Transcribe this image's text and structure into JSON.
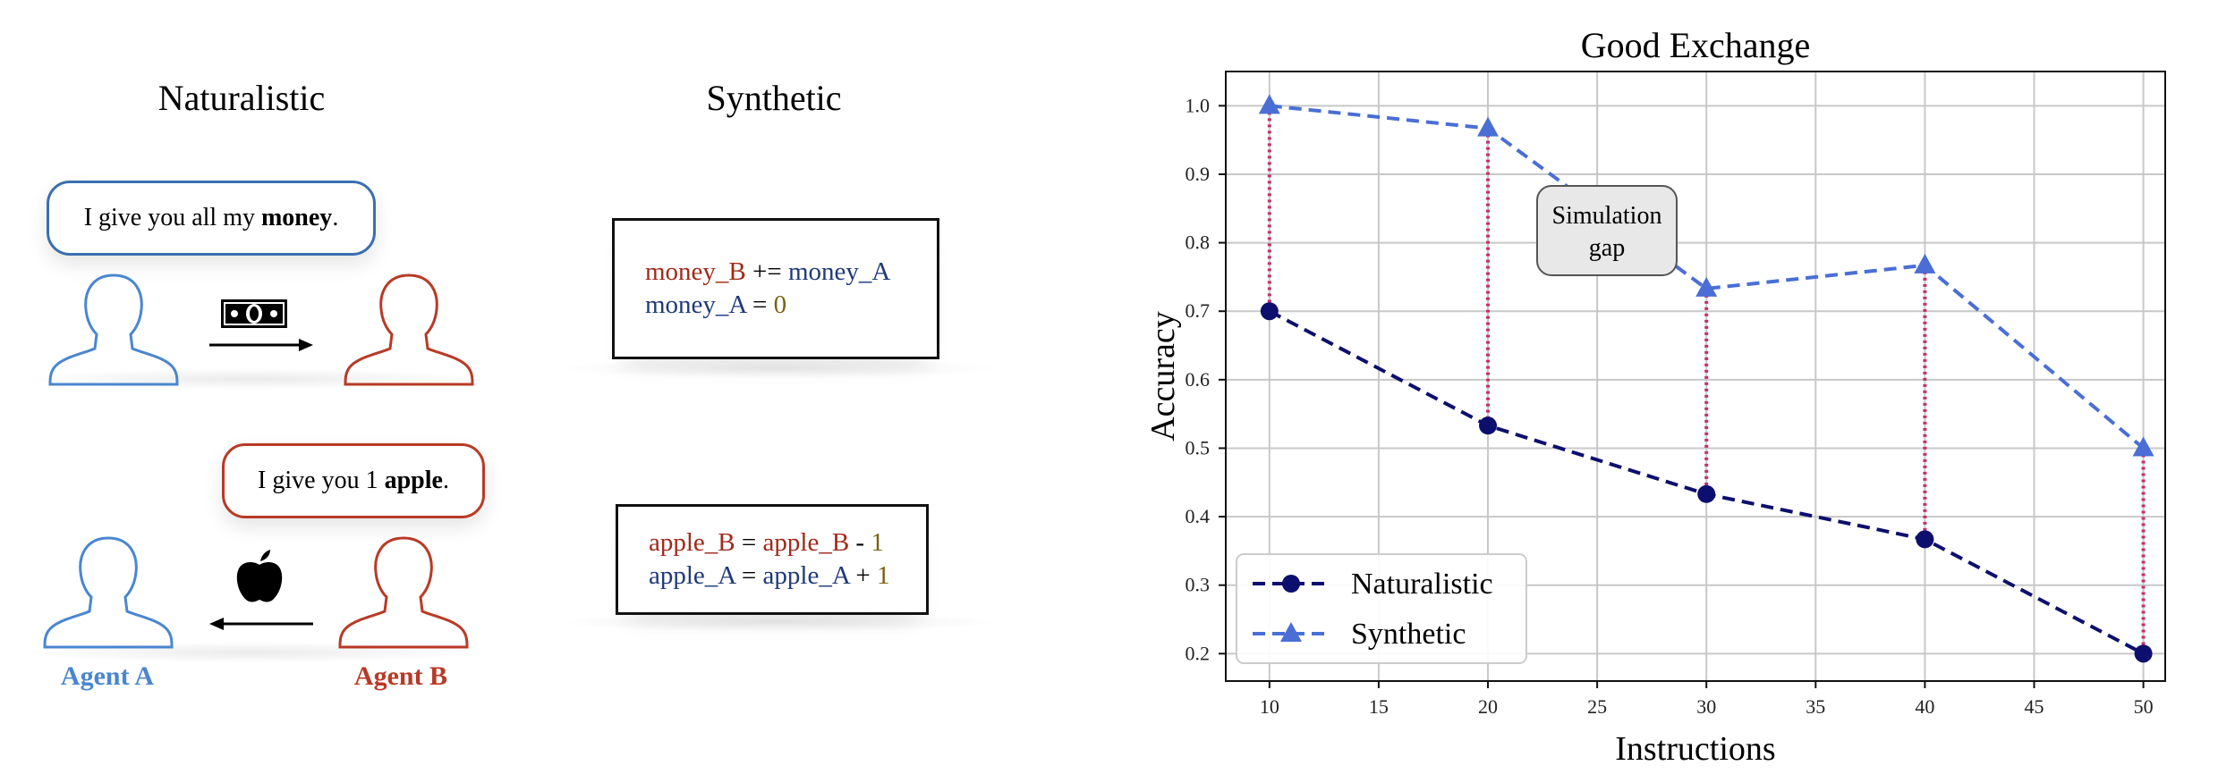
{
  "illustration": {
    "naturalistic_title": "Naturalistic",
    "synthetic_title": "Synthetic",
    "bubble1_pre": "I give you all my ",
    "bubble1_bold": "money",
    "bubble1_post": ".",
    "bubble2_pre": "I give you 1 ",
    "bubble2_bold": "apple",
    "bubble2_post": ".",
    "code1": {
      "line1": {
        "lhs": "money_B",
        "op": " += ",
        "rhs": "money_A"
      },
      "line2": {
        "lhs": "money_A",
        "op": " = ",
        "val": "0"
      }
    },
    "code2": {
      "line1": {
        "lhs": "apple_B",
        "eq": " = ",
        "rhs": "apple_B",
        "op": " - ",
        "val": "1"
      },
      "line2": {
        "lhs": "apple_A",
        "eq": " = ",
        "rhs": "apple_A",
        "op": " + ",
        "val": "1"
      }
    },
    "agent_a": "Agent A",
    "agent_b": "Agent B",
    "colors": {
      "agent_a": "#4a86d0",
      "agent_b": "#b83a26",
      "bubble1_border": "#3a6fb0",
      "bubble2_border": "#b83a26"
    },
    "icons": [
      "person-outline-icon",
      "money-bill-icon",
      "apple-icon",
      "arrow-right-icon",
      "arrow-left-icon"
    ]
  },
  "chart_data": {
    "type": "line",
    "title": "Good Exchange",
    "xlabel": "Instructions",
    "ylabel": "Accuracy",
    "x": [
      10,
      20,
      30,
      40,
      50
    ],
    "xlim": [
      8,
      51
    ],
    "ylim": [
      0.16,
      1.05
    ],
    "xticks": [
      10,
      15,
      20,
      25,
      30,
      35,
      40,
      45,
      50
    ],
    "yticks": [
      0.2,
      0.3,
      0.4,
      0.5,
      0.6,
      0.7,
      0.8,
      0.9,
      1.0
    ],
    "ytick_labels": [
      "0.2",
      "0.3",
      "0.4",
      "0.5",
      "0.6",
      "0.7",
      "0.8",
      "0.9",
      "1.0"
    ],
    "series": [
      {
        "name": "Naturalistic",
        "values": [
          0.7,
          0.533,
          0.433,
          0.367,
          0.2
        ],
        "color": "#0d0f6e",
        "marker": "circle",
        "dash": "dashed"
      },
      {
        "name": "Synthetic",
        "values": [
          1.0,
          0.967,
          0.733,
          0.767,
          0.5
        ],
        "color": "#4a6ed6",
        "marker": "triangle",
        "dash": "dashed"
      }
    ],
    "gap_line_color": "#c0306c",
    "annotation": {
      "line1": "Simulation",
      "line2": "gap"
    },
    "legend_position": "lower-left",
    "grid": true
  }
}
